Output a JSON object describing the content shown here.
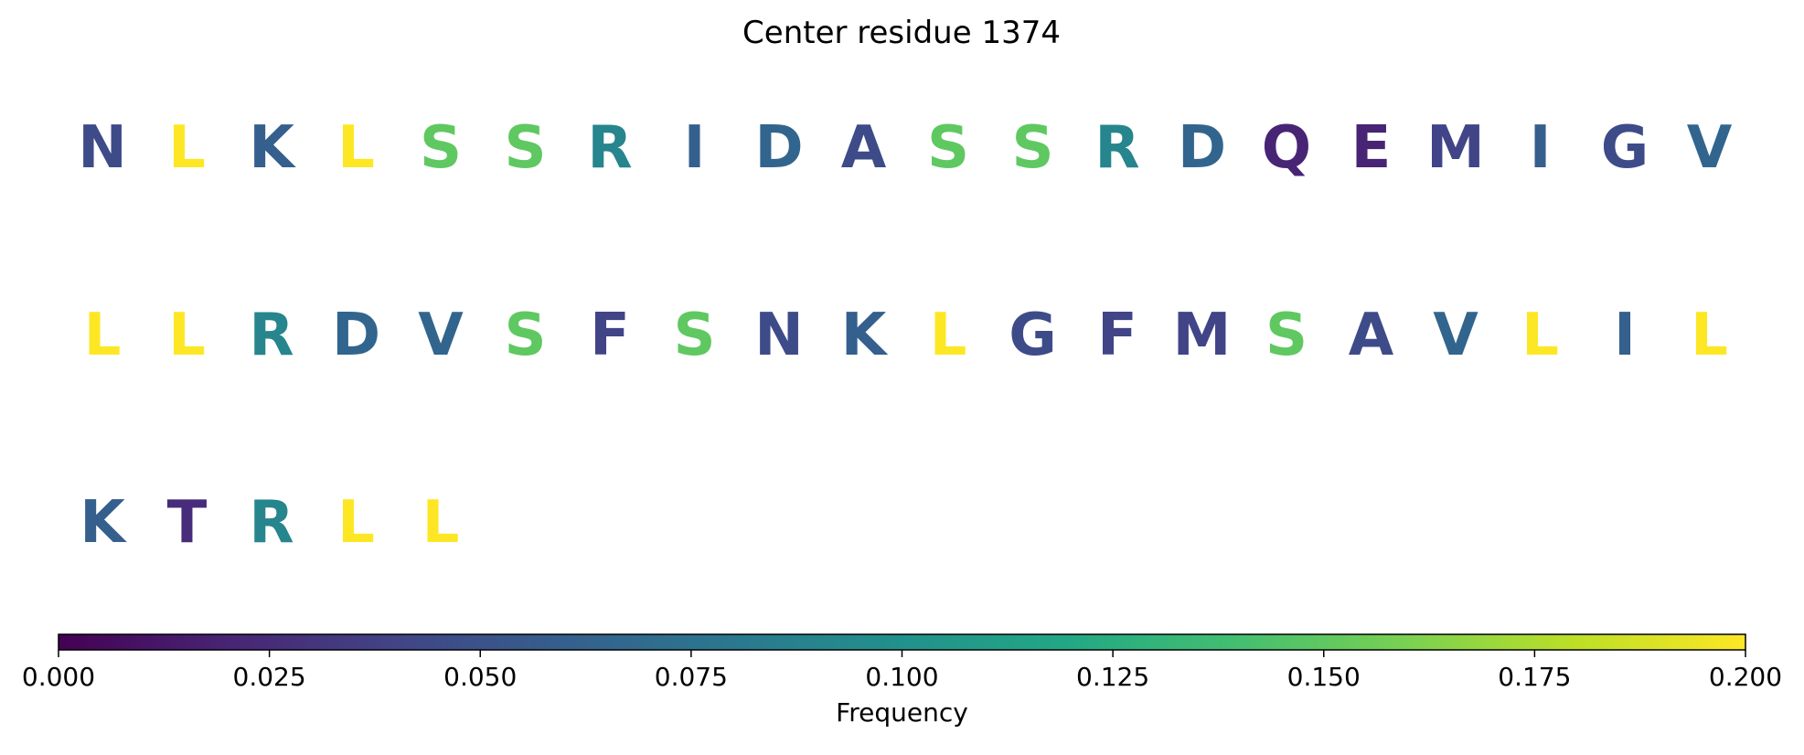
{
  "chart_data": {
    "type": "heatmap",
    "title": "Center residue 1374",
    "colorbar": {
      "label": "Frequency",
      "vmin": 0.0,
      "vmax": 0.2,
      "colormap": "viridis",
      "ticks": [
        0.0,
        0.025,
        0.05,
        0.075,
        0.1,
        0.125,
        0.15,
        0.175,
        0.2
      ],
      "tick_labels": [
        "0.000",
        "0.025",
        "0.050",
        "0.075",
        "0.100",
        "0.125",
        "0.150",
        "0.175",
        "0.200"
      ]
    },
    "residues_per_row": 20,
    "residues": [
      {
        "letter": "N",
        "value": 0.045
      },
      {
        "letter": "L",
        "value": 0.2
      },
      {
        "letter": "K",
        "value": 0.06
      },
      {
        "letter": "L",
        "value": 0.2
      },
      {
        "letter": "S",
        "value": 0.15
      },
      {
        "letter": "S",
        "value": 0.15
      },
      {
        "letter": "R",
        "value": 0.09
      },
      {
        "letter": "I",
        "value": 0.06
      },
      {
        "letter": "D",
        "value": 0.065
      },
      {
        "letter": "A",
        "value": 0.045
      },
      {
        "letter": "S",
        "value": 0.15
      },
      {
        "letter": "S",
        "value": 0.15
      },
      {
        "letter": "R",
        "value": 0.09
      },
      {
        "letter": "D",
        "value": 0.065
      },
      {
        "letter": "Q",
        "value": 0.02
      },
      {
        "letter": "E",
        "value": 0.02
      },
      {
        "letter": "M",
        "value": 0.04
      },
      {
        "letter": "I",
        "value": 0.06
      },
      {
        "letter": "G",
        "value": 0.045
      },
      {
        "letter": "V",
        "value": 0.065
      },
      {
        "letter": "L",
        "value": 0.2
      },
      {
        "letter": "L",
        "value": 0.2
      },
      {
        "letter": "R",
        "value": 0.09
      },
      {
        "letter": "D",
        "value": 0.065
      },
      {
        "letter": "V",
        "value": 0.065
      },
      {
        "letter": "S",
        "value": 0.15
      },
      {
        "letter": "F",
        "value": 0.04
      },
      {
        "letter": "S",
        "value": 0.15
      },
      {
        "letter": "N",
        "value": 0.045
      },
      {
        "letter": "K",
        "value": 0.06
      },
      {
        "letter": "L",
        "value": 0.2
      },
      {
        "letter": "G",
        "value": 0.045
      },
      {
        "letter": "F",
        "value": 0.04
      },
      {
        "letter": "M",
        "value": 0.04
      },
      {
        "letter": "S",
        "value": 0.15
      },
      {
        "letter": "A",
        "value": 0.045
      },
      {
        "letter": "V",
        "value": 0.065
      },
      {
        "letter": "L",
        "value": 0.2
      },
      {
        "letter": "I",
        "value": 0.06
      },
      {
        "letter": "L",
        "value": 0.2
      },
      {
        "letter": "K",
        "value": 0.06
      },
      {
        "letter": "T",
        "value": 0.025
      },
      {
        "letter": "R",
        "value": 0.09
      },
      {
        "letter": "L",
        "value": 0.2
      },
      {
        "letter": "L",
        "value": 0.2
      }
    ]
  }
}
